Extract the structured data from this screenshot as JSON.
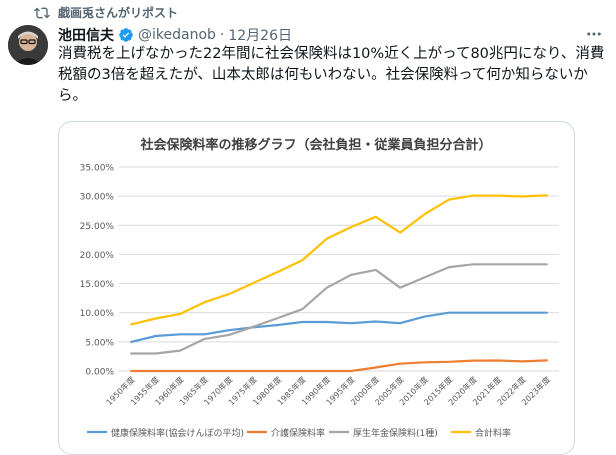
{
  "repost": {
    "text": "戯画兎さんがリポスト"
  },
  "tweet": {
    "author_name": "池田信夫",
    "handle": "@ikedanob",
    "separator": "·",
    "date": "12月26日",
    "text": "消費税を上げなかった22年間に社会保険料は10%近く上がって80兆円になり、消費税額の3倍を超えたが、山本太郎は何もいわない。社会保険料って何か知らないから。"
  },
  "colors": {
    "accent": "#1d9bf0",
    "muted": "#536471"
  },
  "icons": {
    "repost": "repost-icon",
    "verified": "verified-badge-icon",
    "more": "more-icon"
  },
  "chart_data": {
    "type": "line",
    "title": "社会保険料率の推移グラフ（会社負担・従業員負担分合計）",
    "categories": [
      "1950年度",
      "1955年度",
      "1960年度",
      "1965年度",
      "1970年度",
      "1975年度",
      "1980年度",
      "1985年度",
      "1990年度",
      "1995年度",
      "2000年度",
      "2005年度",
      "2010年度",
      "2015年度",
      "2020年度",
      "2021年度",
      "2022年度",
      "2023年度"
    ],
    "y_ticks": [
      "0.00%",
      "5.00%",
      "10.00%",
      "15.00%",
      "20.00%",
      "25.00%",
      "30.00%",
      "35.00%"
    ],
    "ylim": [
      0,
      35
    ],
    "grid": true,
    "legend_position": "bottom",
    "series": [
      {
        "name": "健康保険料率(協会けんぽの平均)",
        "color": "#5b9bd5",
        "values": [
          5.0,
          6.0,
          6.3,
          6.3,
          7.0,
          7.5,
          7.9,
          8.4,
          8.4,
          8.2,
          8.5,
          8.2,
          9.34,
          10.0,
          10.0,
          10.0,
          10.0,
          10.0
        ]
      },
      {
        "name": "介護保険料率",
        "color": "#ed7d31",
        "values": [
          0,
          0,
          0,
          0,
          0,
          0,
          0,
          0,
          0,
          0,
          0.6,
          1.25,
          1.5,
          1.58,
          1.79,
          1.8,
          1.64,
          1.82
        ]
      },
      {
        "name": "厚生年金保険料(1種)",
        "color": "#a5a5a5",
        "values": [
          3.0,
          3.0,
          3.5,
          5.5,
          6.2,
          7.6,
          9.1,
          10.6,
          14.3,
          16.5,
          17.35,
          14.3,
          16.058,
          17.828,
          18.3,
          18.3,
          18.3,
          18.3
        ]
      },
      {
        "name": "合計料率",
        "color": "#ffc000",
        "values": [
          8.0,
          9.0,
          9.8,
          11.8,
          13.2,
          15.1,
          17.0,
          19.0,
          22.7,
          24.7,
          26.45,
          23.75,
          26.9,
          29.4,
          30.09,
          30.1,
          29.94,
          30.12
        ]
      }
    ]
  }
}
